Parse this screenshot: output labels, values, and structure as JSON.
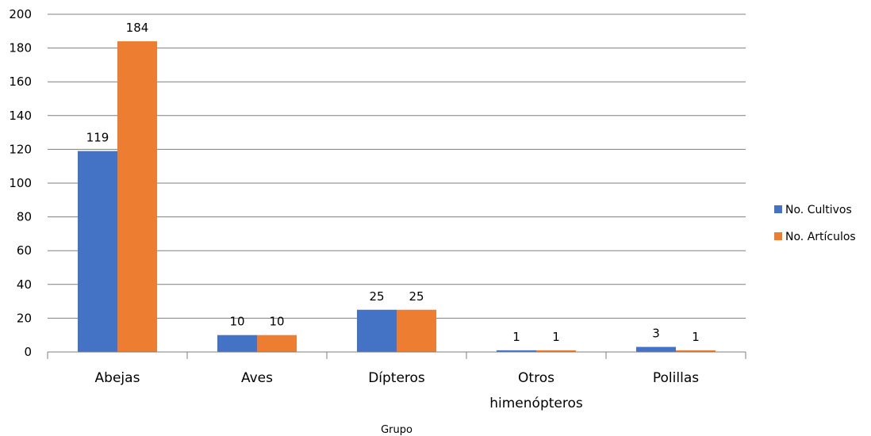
{
  "chart_data": {
    "type": "bar",
    "title": "",
    "xlabel": "Grupo",
    "ylabel": "",
    "ylim": [
      0,
      200
    ],
    "yticks": [
      0,
      20,
      40,
      60,
      80,
      100,
      120,
      140,
      160,
      180,
      200
    ],
    "grid": true,
    "legend_position": "right",
    "categories": [
      [
        "Abejas"
      ],
      [
        "Aves"
      ],
      [
        "Dípteros"
      ],
      [
        "Otros",
        "himenópteros"
      ],
      [
        "Polillas"
      ]
    ],
    "series": [
      {
        "name": "No. Cultivos",
        "color": "#4472C4",
        "values": [
          119,
          10,
          25,
          1,
          3
        ]
      },
      {
        "name": "No. Artículos",
        "color": "#ED7D31",
        "values": [
          184,
          10,
          25,
          1,
          1
        ]
      }
    ]
  }
}
